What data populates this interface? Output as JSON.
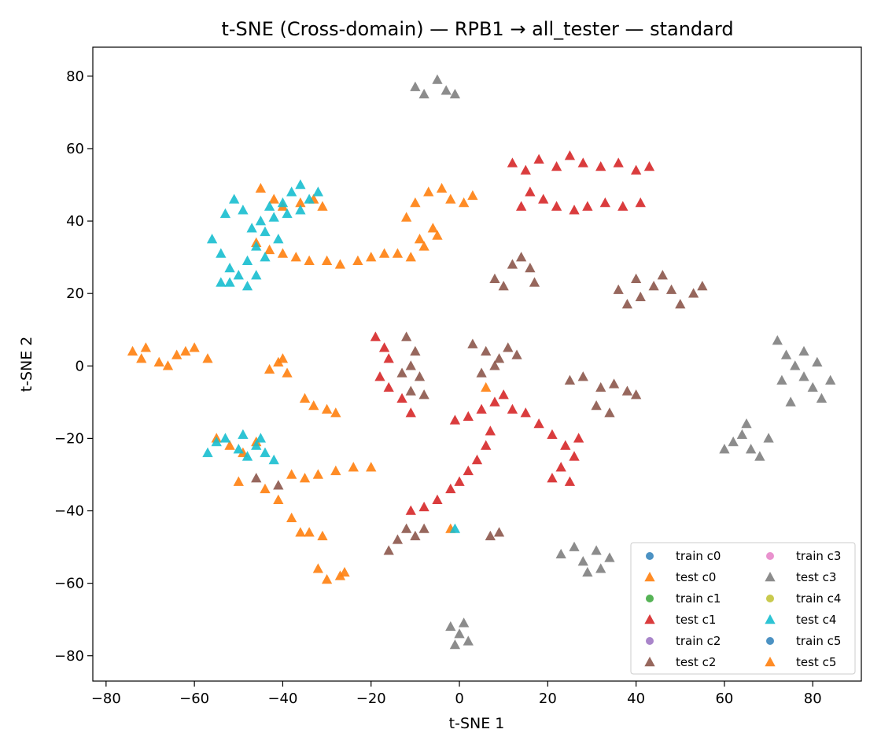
{
  "chart_data": {
    "type": "scatter",
    "title": "t-SNE (Cross-domain) — RPB1 → all_tester — standard",
    "xlabel": "t-SNE 1",
    "ylabel": "t-SNE 2",
    "xlim": [
      -83,
      91
    ],
    "ylim": [
      -87,
      88
    ],
    "xticks": [
      -80,
      -60,
      -40,
      -20,
      0,
      20,
      40,
      60,
      80
    ],
    "yticks": [
      -80,
      -60,
      -40,
      -20,
      0,
      20,
      40,
      60,
      80
    ],
    "xtick_labels": [
      "−80",
      "−60",
      "−40",
      "−20",
      "0",
      "20",
      "40",
      "60",
      "80"
    ],
    "ytick_labels": [
      "−80",
      "−60",
      "−40",
      "−20",
      "0",
      "20",
      "40",
      "60",
      "80"
    ],
    "grid": false,
    "legend_position": "lower-right",
    "legend_columns": 2,
    "series": [
      {
        "name": "train c0",
        "marker": "circle",
        "color": "#1f77b4",
        "points": []
      },
      {
        "name": "test c0",
        "marker": "triangle",
        "color": "#ff7f0e",
        "points": [
          [
            -74,
            4
          ],
          [
            -72,
            2
          ],
          [
            -71,
            5
          ],
          [
            -68,
            1
          ],
          [
            -66,
            0
          ],
          [
            -64,
            3
          ],
          [
            -62,
            4
          ],
          [
            -60,
            5
          ],
          [
            -57,
            2
          ],
          [
            -43,
            -1
          ],
          [
            -41,
            1
          ],
          [
            -39,
            -2
          ],
          [
            -40,
            2
          ],
          [
            -35,
            -9
          ],
          [
            -33,
            -11
          ],
          [
            -30,
            -12
          ],
          [
            -28,
            -13
          ],
          [
            -45,
            49
          ],
          [
            -42,
            46
          ],
          [
            -40,
            44
          ],
          [
            -36,
            45
          ],
          [
            -33,
            46
          ],
          [
            -31,
            44
          ],
          [
            -46,
            34
          ],
          [
            -43,
            32
          ],
          [
            -40,
            31
          ],
          [
            -37,
            30
          ],
          [
            -34,
            29
          ],
          [
            -30,
            29
          ],
          [
            -27,
            28
          ],
          [
            -23,
            29
          ],
          [
            -20,
            30
          ],
          [
            -17,
            31
          ],
          [
            -14,
            31
          ],
          [
            -11,
            30
          ],
          [
            -8,
            33
          ],
          [
            -12,
            41
          ],
          [
            -10,
            45
          ],
          [
            -7,
            48
          ],
          [
            -4,
            49
          ],
          [
            -2,
            46
          ],
          [
            1,
            45
          ],
          [
            3,
            47
          ],
          [
            -6,
            38
          ],
          [
            -9,
            35
          ],
          [
            -5,
            36
          ],
          [
            -55,
            -20
          ],
          [
            -52,
            -22
          ],
          [
            -49,
            -24
          ],
          [
            -46,
            -21
          ],
          [
            -38,
            -30
          ],
          [
            -35,
            -31
          ],
          [
            -32,
            -30
          ],
          [
            -28,
            -29
          ],
          [
            -24,
            -28
          ],
          [
            -20,
            -28
          ],
          [
            -50,
            -32
          ],
          [
            -44,
            -34
          ],
          [
            -41,
            -37
          ],
          [
            -38,
            -42
          ],
          [
            -36,
            -46
          ],
          [
            -34,
            -46
          ],
          [
            -31,
            -47
          ],
          [
            -32,
            -56
          ],
          [
            -30,
            -59
          ],
          [
            -27,
            -58
          ],
          [
            -26,
            -57
          ],
          [
            6,
            -6
          ],
          [
            -2,
            -45
          ]
        ]
      },
      {
        "name": "train c1",
        "marker": "circle",
        "color": "#2ca02c",
        "points": []
      },
      {
        "name": "test c1",
        "marker": "triangle",
        "color": "#d62728",
        "points": [
          [
            12,
            56
          ],
          [
            15,
            54
          ],
          [
            18,
            57
          ],
          [
            22,
            55
          ],
          [
            25,
            58
          ],
          [
            28,
            56
          ],
          [
            32,
            55
          ],
          [
            36,
            56
          ],
          [
            40,
            54
          ],
          [
            43,
            55
          ],
          [
            16,
            48
          ],
          [
            19,
            46
          ],
          [
            22,
            44
          ],
          [
            26,
            43
          ],
          [
            29,
            44
          ],
          [
            33,
            45
          ],
          [
            37,
            44
          ],
          [
            41,
            45
          ],
          [
            14,
            44
          ],
          [
            -19,
            8
          ],
          [
            -17,
            5
          ],
          [
            -16,
            2
          ],
          [
            -18,
            -3
          ],
          [
            -16,
            -6
          ],
          [
            -13,
            -9
          ],
          [
            -11,
            -13
          ],
          [
            8,
            -10
          ],
          [
            5,
            -12
          ],
          [
            2,
            -14
          ],
          [
            -1,
            -15
          ],
          [
            10,
            -8
          ],
          [
            12,
            -12
          ],
          [
            15,
            -13
          ],
          [
            18,
            -16
          ],
          [
            21,
            -19
          ],
          [
            24,
            -22
          ],
          [
            26,
            -25
          ],
          [
            23,
            -28
          ],
          [
            21,
            -31
          ],
          [
            25,
            -32
          ],
          [
            27,
            -20
          ],
          [
            6,
            -22
          ],
          [
            4,
            -26
          ],
          [
            2,
            -29
          ],
          [
            0,
            -32
          ],
          [
            -2,
            -34
          ],
          [
            -5,
            -37
          ],
          [
            -8,
            -39
          ],
          [
            -11,
            -40
          ],
          [
            7,
            -18
          ]
        ]
      },
      {
        "name": "train c2",
        "marker": "circle",
        "color": "#9467bd",
        "points": []
      },
      {
        "name": "test c2",
        "marker": "triangle",
        "color": "#8c564b",
        "points": [
          [
            8,
            24
          ],
          [
            10,
            22
          ],
          [
            12,
            28
          ],
          [
            14,
            30
          ],
          [
            16,
            27
          ],
          [
            17,
            23
          ],
          [
            36,
            21
          ],
          [
            38,
            17
          ],
          [
            41,
            19
          ],
          [
            44,
            22
          ],
          [
            46,
            25
          ],
          [
            48,
            21
          ],
          [
            50,
            17
          ],
          [
            53,
            20
          ],
          [
            55,
            22
          ],
          [
            40,
            24
          ],
          [
            -12,
            8
          ],
          [
            -10,
            4
          ],
          [
            -11,
            0
          ],
          [
            -9,
            -3
          ],
          [
            -11,
            -7
          ],
          [
            -8,
            -8
          ],
          [
            -13,
            -2
          ],
          [
            3,
            6
          ],
          [
            6,
            4
          ],
          [
            9,
            2
          ],
          [
            11,
            5
          ],
          [
            13,
            3
          ],
          [
            8,
            0
          ],
          [
            5,
            -2
          ],
          [
            25,
            -4
          ],
          [
            28,
            -3
          ],
          [
            32,
            -6
          ],
          [
            35,
            -5
          ],
          [
            38,
            -7
          ],
          [
            40,
            -8
          ],
          [
            31,
            -11
          ],
          [
            34,
            -13
          ],
          [
            -14,
            -48
          ],
          [
            -12,
            -45
          ],
          [
            -10,
            -47
          ],
          [
            -8,
            -45
          ],
          [
            -16,
            -51
          ],
          [
            7,
            -47
          ],
          [
            9,
            -46
          ],
          [
            -41,
            -33
          ],
          [
            -46,
            -31
          ]
        ]
      },
      {
        "name": "train c3",
        "marker": "circle",
        "color": "#e377c2",
        "points": []
      },
      {
        "name": "test c3",
        "marker": "triangle",
        "color": "#7f7f7f",
        "points": [
          [
            -10,
            77
          ],
          [
            -8,
            75
          ],
          [
            -5,
            79
          ],
          [
            -3,
            76
          ],
          [
            -1,
            75
          ],
          [
            72,
            7
          ],
          [
            74,
            3
          ],
          [
            76,
            0
          ],
          [
            78,
            -3
          ],
          [
            80,
            -6
          ],
          [
            82,
            -9
          ],
          [
            84,
            -4
          ],
          [
            75,
            -10
          ],
          [
            73,
            -4
          ],
          [
            78,
            4
          ],
          [
            81,
            1
          ],
          [
            60,
            -23
          ],
          [
            62,
            -21
          ],
          [
            64,
            -19
          ],
          [
            66,
            -23
          ],
          [
            68,
            -25
          ],
          [
            70,
            -20
          ],
          [
            65,
            -16
          ],
          [
            23,
            -52
          ],
          [
            26,
            -50
          ],
          [
            28,
            -54
          ],
          [
            31,
            -51
          ],
          [
            34,
            -53
          ],
          [
            32,
            -56
          ],
          [
            29,
            -57
          ],
          [
            -2,
            -72
          ],
          [
            0,
            -74
          ],
          [
            2,
            -76
          ],
          [
            1,
            -71
          ],
          [
            -1,
            -77
          ]
        ]
      },
      {
        "name": "train c4",
        "marker": "circle",
        "color": "#bcbd22",
        "points": []
      },
      {
        "name": "test c4",
        "marker": "triangle",
        "color": "#17becf",
        "points": [
          [
            -56,
            35
          ],
          [
            -54,
            31
          ],
          [
            -52,
            27
          ],
          [
            -50,
            25
          ],
          [
            -48,
            29
          ],
          [
            -46,
            33
          ],
          [
            -44,
            37
          ],
          [
            -42,
            41
          ],
          [
            -40,
            45
          ],
          [
            -38,
            48
          ],
          [
            -36,
            50
          ],
          [
            -53,
            42
          ],
          [
            -51,
            46
          ],
          [
            -49,
            43
          ],
          [
            -45,
            40
          ],
          [
            -43,
            44
          ],
          [
            -41,
            35
          ],
          [
            -47,
            38
          ],
          [
            -39,
            42
          ],
          [
            -36,
            43
          ],
          [
            -34,
            46
          ],
          [
            -32,
            48
          ],
          [
            -54,
            23
          ],
          [
            -52,
            23
          ],
          [
            -48,
            22
          ],
          [
            -46,
            25
          ],
          [
            -44,
            30
          ],
          [
            -57,
            -24
          ],
          [
            -55,
            -21
          ],
          [
            -53,
            -20
          ],
          [
            -50,
            -23
          ],
          [
            -48,
            -25
          ],
          [
            -46,
            -22
          ],
          [
            -44,
            -24
          ],
          [
            -42,
            -26
          ],
          [
            -49,
            -19
          ],
          [
            -45,
            -20
          ],
          [
            -1,
            -45
          ]
        ]
      },
      {
        "name": "train c5",
        "marker": "circle",
        "color": "#1f77b4",
        "points": []
      },
      {
        "name": "test c5",
        "marker": "triangle",
        "color": "#ff7f0e",
        "points": []
      }
    ]
  }
}
